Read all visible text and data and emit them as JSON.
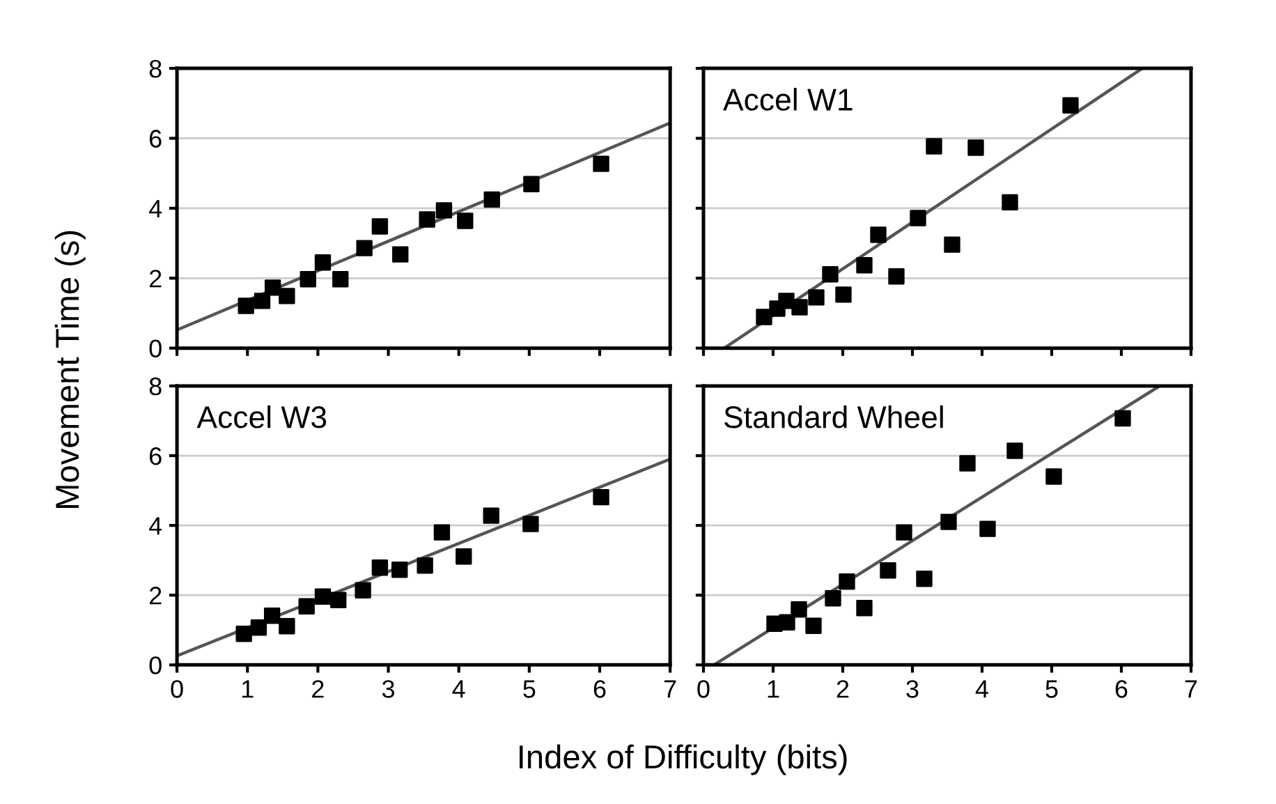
{
  "chart_data": [
    {
      "type": "scatter",
      "ylabel": "Movement Time (s)",
      "xlim": [
        0,
        7
      ],
      "ylim": [
        0,
        8
      ],
      "xticks": [
        0,
        1,
        2,
        3,
        4,
        5,
        6,
        7
      ],
      "yticks": [
        0,
        2,
        4,
        6,
        8
      ],
      "grid": "y",
      "tick_labels": "y",
      "series": [
        {
          "color": "#000000",
          "marker": "square",
          "x": [
            0.98,
            1.21,
            1.36,
            1.56,
            1.86,
            2.07,
            2.32,
            2.66,
            2.88,
            3.17,
            3.55,
            3.79,
            4.09,
            4.47,
            5.03,
            6.02
          ],
          "values": [
            1.21,
            1.35,
            1.73,
            1.49,
            1.97,
            2.45,
            1.97,
            2.86,
            3.48,
            2.68,
            3.68,
            3.94,
            3.64,
            4.25,
            4.69,
            5.27
          ]
        },
        {
          "type": "line",
          "marker": "none",
          "color": "#555555",
          "x": [
            0,
            7
          ],
          "values": [
            0.52,
            6.44
          ]
        }
      ]
    },
    {
      "type": "scatter",
      "title": "Accel W1",
      "xlim": [
        0,
        7
      ],
      "ylim": [
        0,
        8
      ],
      "xticks": [
        0,
        1,
        2,
        3,
        4,
        5,
        6,
        7
      ],
      "yticks": [
        0,
        2,
        4,
        6,
        8
      ],
      "grid": "y",
      "tick_labels": false,
      "series": [
        {
          "color": "#000000",
          "marker": "square",
          "x": [
            0.87,
            1.06,
            1.19,
            1.38,
            1.62,
            1.82,
            2.01,
            2.31,
            2.51,
            2.77,
            3.08,
            3.31,
            3.57,
            3.91,
            4.4,
            5.27
          ],
          "values": [
            0.89,
            1.13,
            1.35,
            1.17,
            1.45,
            2.11,
            1.53,
            2.37,
            3.24,
            2.05,
            3.72,
            5.77,
            2.96,
            5.73,
            4.17,
            6.94
          ]
        },
        {
          "type": "line",
          "marker": "none",
          "color": "#555555",
          "x": [
            0.3,
            6.3
          ],
          "values": [
            0,
            8
          ]
        }
      ]
    },
    {
      "type": "scatter",
      "title": "Accel W3",
      "xlabel": "Index of Difficulty (bits)",
      "xlim": [
        0,
        7
      ],
      "ylim": [
        0,
        8
      ],
      "xticks": [
        0,
        1,
        2,
        3,
        4,
        5,
        6,
        7
      ],
      "yticks": [
        0,
        2,
        4,
        6,
        8
      ],
      "grid": "y",
      "series": [
        {
          "color": "#000000",
          "marker": "square",
          "x": [
            0.95,
            1.16,
            1.35,
            1.56,
            1.84,
            2.07,
            2.29,
            2.64,
            2.88,
            3.16,
            3.52,
            3.76,
            4.07,
            4.46,
            5.02,
            6.02
          ],
          "values": [
            0.89,
            1.07,
            1.41,
            1.11,
            1.68,
            1.96,
            1.86,
            2.14,
            2.79,
            2.73,
            2.85,
            3.8,
            3.11,
            4.28,
            4.04,
            4.81
          ]
        },
        {
          "type": "line",
          "marker": "none",
          "color": "#555555",
          "x": [
            0,
            7
          ],
          "values": [
            0.26,
            5.9
          ]
        }
      ]
    },
    {
      "type": "scatter",
      "title": "Standard Wheel",
      "xlim": [
        0,
        7
      ],
      "ylim": [
        0,
        8
      ],
      "xticks": [
        0,
        1,
        2,
        3,
        4,
        5,
        6,
        7
      ],
      "yticks": [
        0,
        2,
        4,
        6,
        8
      ],
      "grid": "y",
      "tick_labels": "x",
      "series": [
        {
          "color": "#000000",
          "marker": "square",
          "x": [
            1.02,
            1.2,
            1.37,
            1.58,
            1.86,
            2.06,
            2.31,
            2.65,
            2.88,
            3.17,
            3.52,
            3.79,
            4.08,
            4.47,
            5.03,
            6.02
          ],
          "values": [
            1.18,
            1.22,
            1.59,
            1.12,
            1.91,
            2.39,
            1.63,
            2.71,
            3.8,
            2.47,
            4.1,
            5.78,
            3.9,
            6.14,
            5.4,
            7.07
          ]
        },
        {
          "type": "line",
          "marker": "none",
          "color": "#555555",
          "x": [
            0.15,
            6.55
          ],
          "values": [
            0,
            8
          ]
        }
      ]
    }
  ]
}
